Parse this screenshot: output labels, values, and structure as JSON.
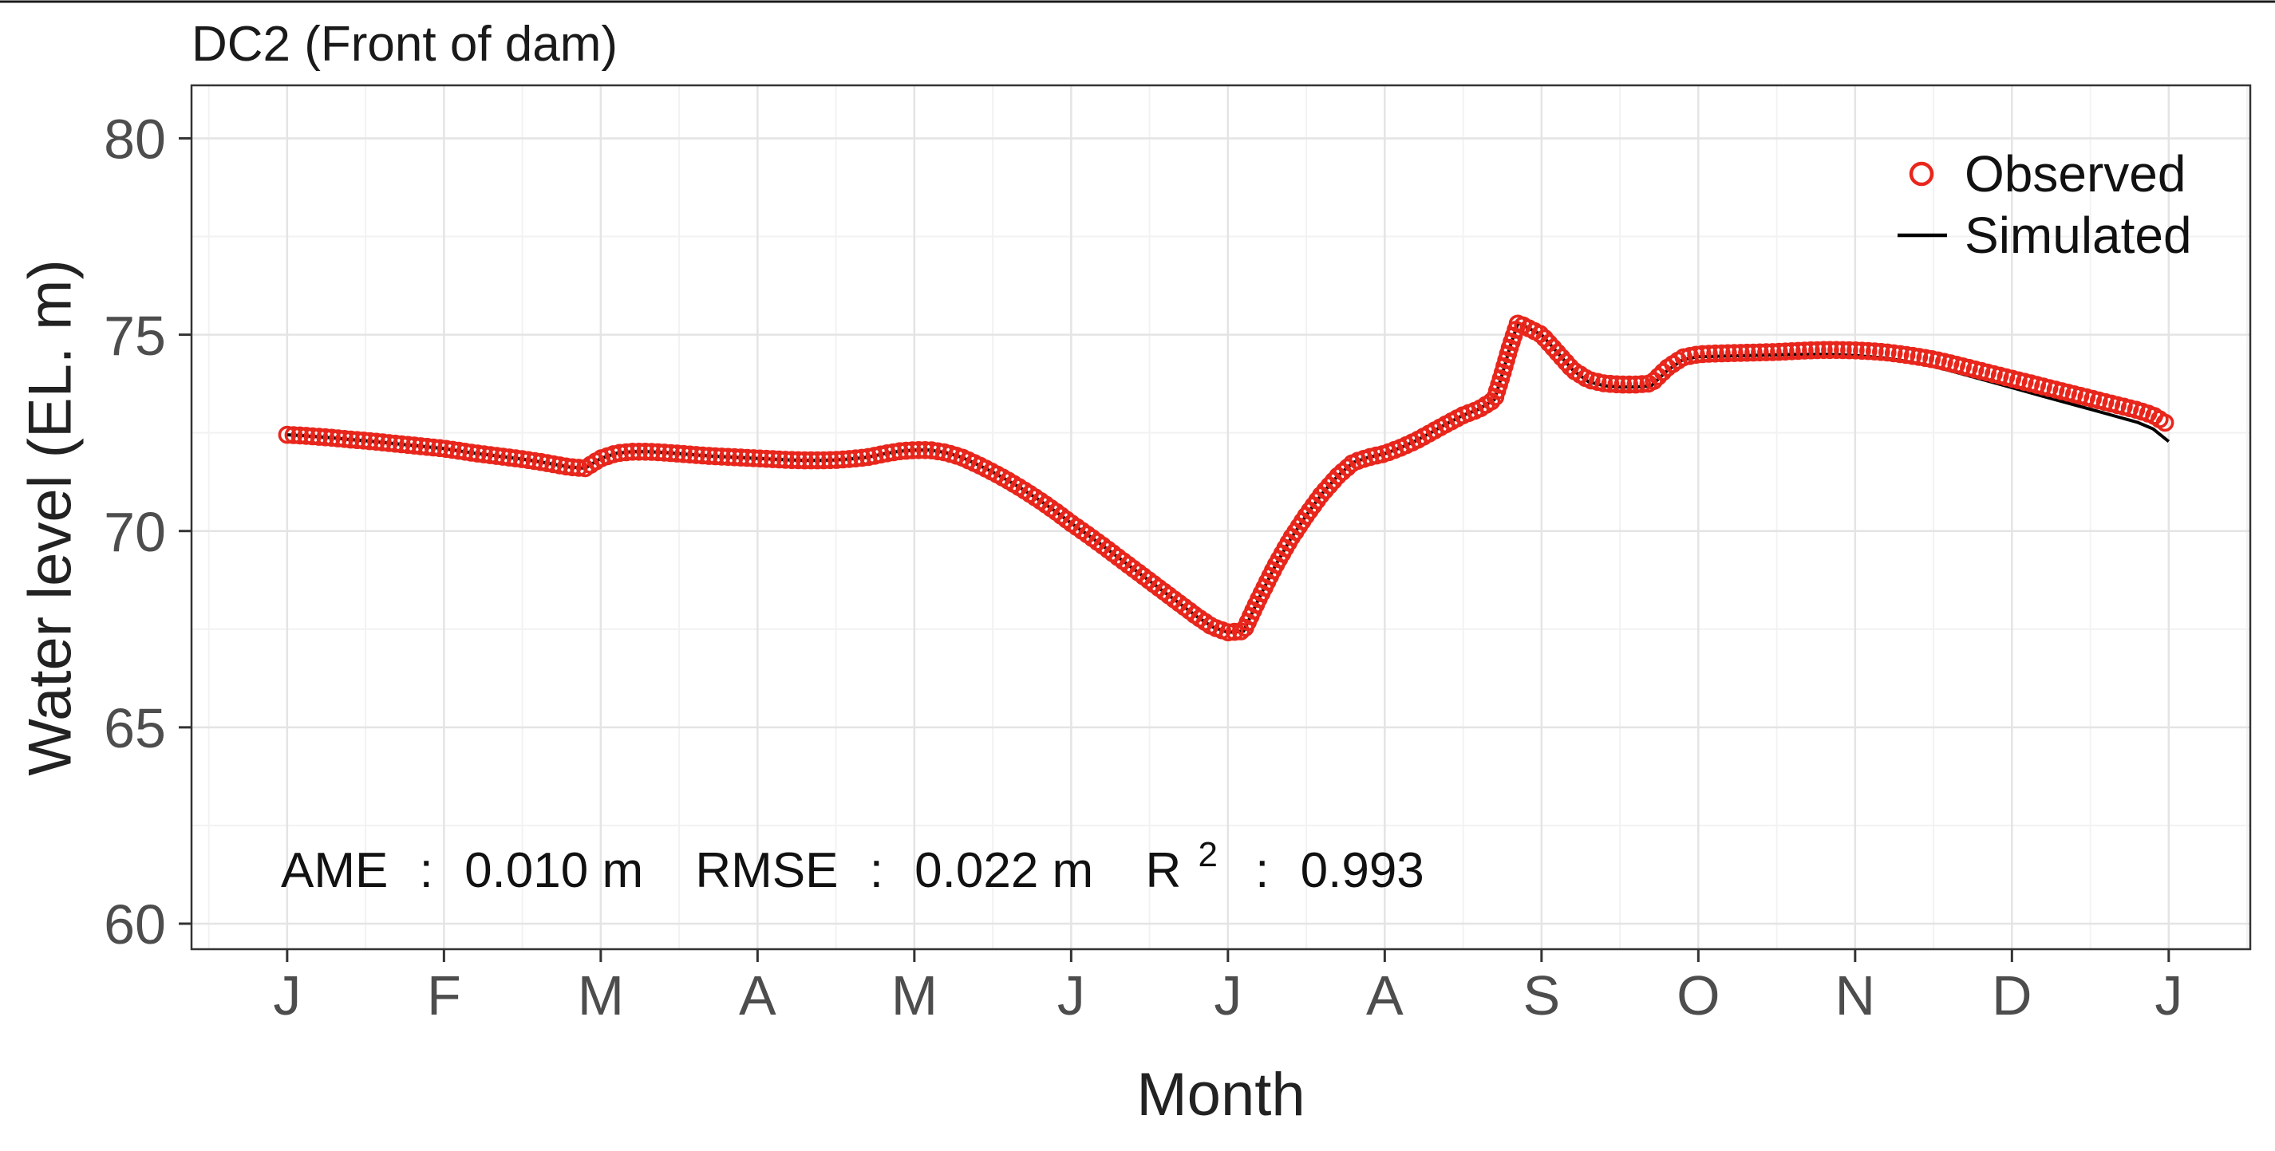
{
  "figure": {
    "title": "DC2 (Front of dam)"
  },
  "chart_data": {
    "type": "line",
    "title": "DC2 (Front of dam)",
    "xlabel": "Month",
    "ylabel": "Water level (EL. m)",
    "x_tick_labels": [
      "J",
      "F",
      "M",
      "A",
      "M",
      "J",
      "J",
      "A",
      "S",
      "O",
      "N",
      "D",
      "J"
    ],
    "x_tick_positions": [
      0,
      1,
      2,
      3,
      4,
      5,
      6,
      7,
      8,
      9,
      10,
      11,
      12
    ],
    "y_ticks": [
      60,
      65,
      70,
      75,
      80
    ],
    "y_minor": [
      62.5,
      67.5,
      72.5,
      77.5
    ],
    "xlim": [
      -0.61,
      12.52
    ],
    "ylim": [
      59.35,
      81.35
    ],
    "grid": "on",
    "legend_position": "top-right",
    "legend": [
      {
        "label": "Observed",
        "marker": "open-circle",
        "color": "#e8261c"
      },
      {
        "label": "Simulated",
        "marker": "line",
        "color": "#000000"
      }
    ],
    "stats": {
      "ame_label": "AME",
      "separator": ":",
      "ame_value": "0.010 m",
      "rmse_label": "RMSE",
      "rmse_value": "0.022 m",
      "r2_label": "R",
      "r2_exponent": "2",
      "r2_value": "0.993"
    },
    "x": [
      0,
      0.1,
      0.2,
      0.3,
      0.4,
      0.5,
      0.6,
      0.7,
      0.8,
      0.9,
      1,
      1.1,
      1.2,
      1.3,
      1.4,
      1.5,
      1.6,
      1.7,
      1.8,
      1.9,
      2,
      2.1,
      2.2,
      2.3,
      2.4,
      2.5,
      2.6,
      2.7,
      2.8,
      2.9,
      3,
      3.1,
      3.2,
      3.3,
      3.4,
      3.5,
      3.6,
      3.7,
      3.8,
      3.9,
      4,
      4.1,
      4.2,
      4.3,
      4.4,
      4.5,
      4.6,
      4.7,
      4.8,
      4.9,
      5,
      5.1,
      5.2,
      5.3,
      5.4,
      5.5,
      5.6,
      5.7,
      5.8,
      5.9,
      6,
      6.1,
      6.2,
      6.3,
      6.4,
      6.5,
      6.6,
      6.7,
      6.8,
      6.9,
      7,
      7.1,
      7.2,
      7.3,
      7.4,
      7.5,
      7.6,
      7.7,
      7.75,
      7.8,
      7.85,
      7.9,
      8,
      8.1,
      8.2,
      8.3,
      8.4,
      8.5,
      8.6,
      8.7,
      8.8,
      8.9,
      9,
      9.1,
      9.2,
      9.3,
      9.4,
      9.5,
      9.6,
      9.7,
      9.8,
      9.9,
      10,
      10.1,
      10.2,
      10.3,
      10.4,
      10.5,
      10.6,
      10.7,
      10.8,
      10.9,
      11,
      11.1,
      11.2,
      11.3,
      11.4,
      11.5,
      11.6,
      11.7,
      11.8,
      11.9,
      12
    ],
    "series": [
      {
        "name": "Observed",
        "type": "points",
        "color": "#e8261c",
        "values": [
          72.45,
          72.43,
          72.4,
          72.37,
          72.33,
          72.3,
          72.26,
          72.22,
          72.18,
          72.14,
          72.1,
          72.04,
          71.98,
          71.93,
          71.88,
          71.83,
          71.77,
          71.7,
          71.63,
          71.6,
          71.85,
          71.98,
          72.02,
          72.02,
          72.0,
          71.97,
          71.94,
          71.91,
          71.89,
          71.87,
          71.85,
          71.83,
          71.81,
          71.8,
          71.8,
          71.81,
          71.84,
          71.88,
          71.96,
          72.03,
          72.06,
          72.06,
          72.0,
          71.88,
          71.7,
          71.5,
          71.28,
          71.04,
          70.78,
          70.5,
          70.2,
          69.92,
          69.63,
          69.33,
          69.03,
          68.73,
          68.43,
          68.13,
          67.83,
          67.56,
          67.42,
          67.45,
          68.3,
          69.1,
          69.8,
          70.4,
          70.95,
          71.4,
          71.75,
          71.88,
          71.97,
          72.12,
          72.3,
          72.52,
          72.74,
          72.95,
          73.1,
          73.35,
          74.0,
          74.7,
          75.3,
          75.2,
          75.0,
          74.55,
          74.1,
          73.85,
          73.76,
          73.73,
          73.73,
          73.76,
          74.15,
          74.42,
          74.5,
          74.52,
          74.53,
          74.54,
          74.55,
          74.56,
          74.58,
          74.6,
          74.61,
          74.61,
          74.6,
          74.58,
          74.55,
          74.5,
          74.44,
          74.37,
          74.28,
          74.18,
          74.08,
          73.98,
          73.88,
          73.78,
          73.68,
          73.58,
          73.48,
          73.38,
          73.28,
          73.18,
          73.08,
          72.95,
          72.7
        ]
      },
      {
        "name": "Simulated",
        "type": "line",
        "color": "#000000",
        "values": [
          72.45,
          72.43,
          72.4,
          72.37,
          72.33,
          72.3,
          72.26,
          72.22,
          72.18,
          72.14,
          72.1,
          72.04,
          71.98,
          71.93,
          71.88,
          71.83,
          71.77,
          71.7,
          71.63,
          71.6,
          71.85,
          71.98,
          72.02,
          72.02,
          72.0,
          71.97,
          71.94,
          71.91,
          71.89,
          71.87,
          71.85,
          71.83,
          71.81,
          71.8,
          71.8,
          71.81,
          71.84,
          71.88,
          71.96,
          72.03,
          72.06,
          72.06,
          72.0,
          71.88,
          71.7,
          71.5,
          71.28,
          71.04,
          70.78,
          70.5,
          70.2,
          69.92,
          69.63,
          69.33,
          69.03,
          68.73,
          68.43,
          68.13,
          67.83,
          67.56,
          67.42,
          67.45,
          68.3,
          69.1,
          69.8,
          70.4,
          70.95,
          71.4,
          71.75,
          71.88,
          71.97,
          72.12,
          72.3,
          72.52,
          72.74,
          72.95,
          73.1,
          73.35,
          74.0,
          74.7,
          75.3,
          75.2,
          75.0,
          74.55,
          74.1,
          73.8,
          73.7,
          73.67,
          73.67,
          73.7,
          74.08,
          74.36,
          74.44,
          74.45,
          74.46,
          74.47,
          74.48,
          74.49,
          74.5,
          74.5,
          74.5,
          74.49,
          74.47,
          74.44,
          74.4,
          74.34,
          74.27,
          74.19,
          74.09,
          73.98,
          73.87,
          73.76,
          73.65,
          73.54,
          73.43,
          73.32,
          73.21,
          73.1,
          72.99,
          72.88,
          72.77,
          72.6,
          72.28
        ]
      }
    ]
  }
}
